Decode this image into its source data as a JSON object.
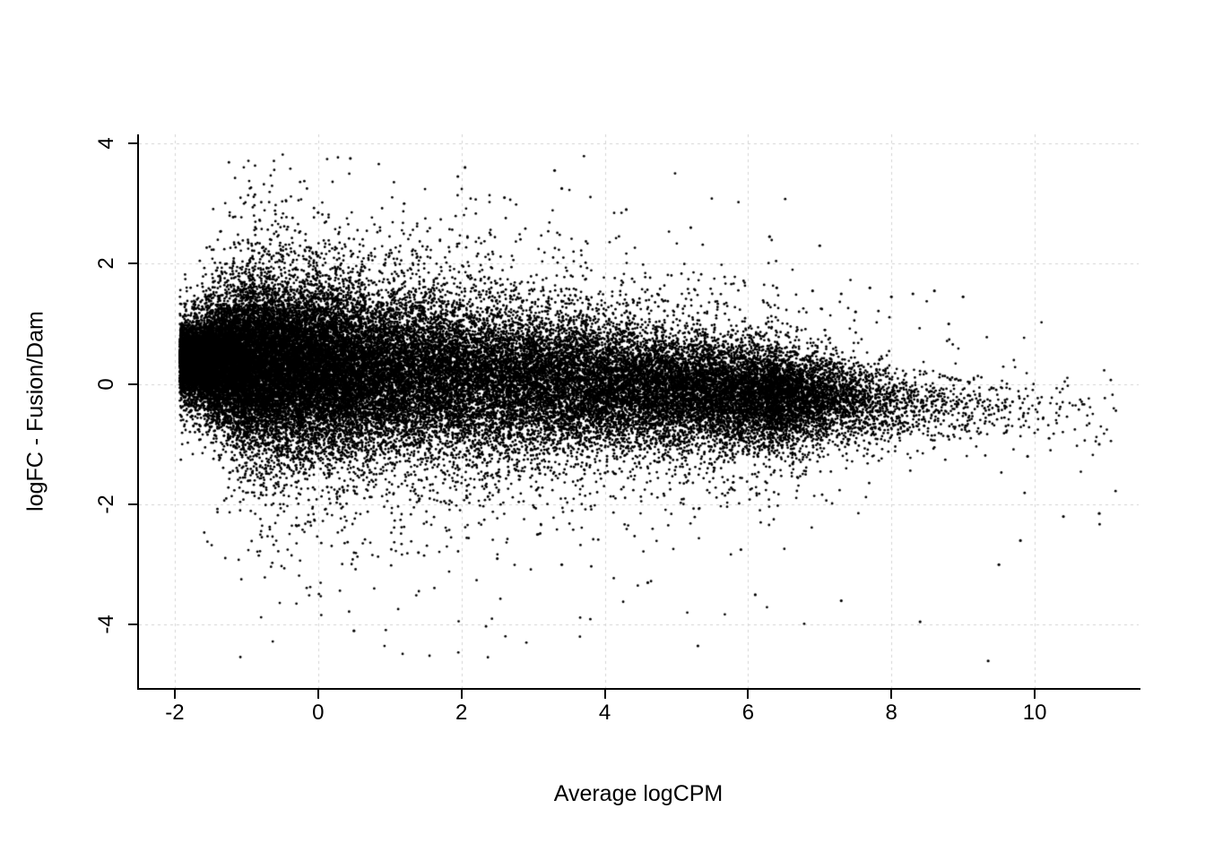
{
  "figure": {
    "background": "#ffffff",
    "text_color": "#000000"
  },
  "chart_data": {
    "type": "scatter",
    "title": "",
    "xlabel": "Average logCPM",
    "ylabel": "logFC - Fusion/Dam",
    "xlim": [
      -2.5,
      11.45
    ],
    "ylim": [
      -5.05,
      4.15
    ],
    "x_ticks": [
      -2,
      0,
      2,
      4,
      6,
      8,
      10
    ],
    "y_ticks": [
      -4,
      -2,
      0,
      2,
      4
    ],
    "grid": {
      "visible": true,
      "style": "dashed",
      "color": "#d4d4d4"
    },
    "point_color": "#000000",
    "point_radius_px": 1.4,
    "n_points": 46000,
    "cloud_model": {
      "seed": 42,
      "x_edge_min": -1.93,
      "x_dense_max": 6.27,
      "x_tail_max": 11.15,
      "center_at_left": 0.42,
      "center_slope_per_x": -0.072,
      "spread_base": 1.12,
      "left_funnel_width_x": 1.15,
      "taper_start_x": 1.8,
      "taper_slope": 0.088,
      "taper_min": 0.42,
      "y_clip": [
        -4.68,
        3.82
      ],
      "description": "MA-plot style cloud: dense black mass from logCPM -1.9 to ~6.5 centered near logFC 0.3 drifting down to -0.3 at high logCPM; narrow rounded tip at left edge; sparse halo of outliers to logFC +3.8 and -4.6; thin sparse tail out to logCPM ~11."
    },
    "notable_outliers": [
      [
        0.45,
        3.75
      ],
      [
        2.05,
        3.6
      ],
      [
        3.3,
        3.55
      ],
      [
        1.95,
        3.45
      ],
      [
        3.4,
        3.25
      ],
      [
        2.6,
        3.1
      ],
      [
        1.2,
        3.0
      ],
      [
        0.0,
        2.85
      ],
      [
        4.3,
        2.9
      ],
      [
        5.2,
        2.6
      ],
      [
        6.3,
        2.45
      ],
      [
        7.0,
        2.3
      ],
      [
        6.4,
        1.6
      ],
      [
        6.9,
        1.55
      ],
      [
        7.3,
        1.5
      ],
      [
        7.7,
        1.6
      ],
      [
        8.0,
        1.45
      ],
      [
        8.3,
        1.5
      ],
      [
        8.6,
        1.55
      ],
      [
        9.0,
        1.45
      ],
      [
        7.5,
        1.2
      ],
      [
        8.8,
        1.0
      ],
      [
        9.3,
        -0.4
      ],
      [
        9.6,
        -0.8
      ],
      [
        9.9,
        -1.2
      ],
      [
        10.2,
        -0.9
      ],
      [
        10.4,
        -2.2
      ],
      [
        10.9,
        -2.15
      ],
      [
        10.9,
        -1.0
      ],
      [
        9.8,
        -2.6
      ],
      [
        9.5,
        -3.0
      ],
      [
        9.35,
        -4.6
      ],
      [
        5.3,
        -4.35
      ],
      [
        0.5,
        -4.1
      ],
      [
        8.4,
        -3.95
      ],
      [
        7.3,
        -3.6
      ],
      [
        6.1,
        -3.5
      ],
      [
        4.6,
        -3.3
      ],
      [
        3.4,
        -3.0
      ],
      [
        2.5,
        -2.9
      ],
      [
        1.4,
        -2.8
      ],
      [
        5.9,
        -2.75
      ]
    ]
  }
}
